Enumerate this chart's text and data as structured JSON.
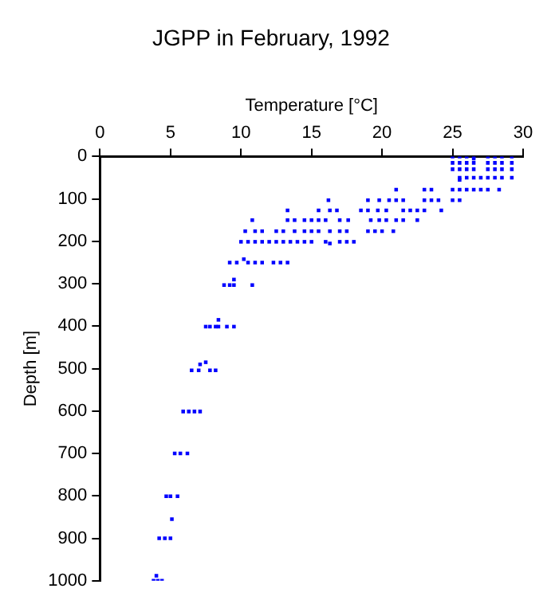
{
  "chart_data": {
    "type": "scatter",
    "title": "JGPP in February, 1992",
    "xlabel": "Temperature [°C]",
    "ylabel": "Depth [m]",
    "xlim": [
      0,
      30
    ],
    "xticks": [
      0,
      5,
      10,
      15,
      20,
      25,
      30
    ],
    "ylim": [
      1000,
      0
    ],
    "yticks": [
      0,
      100,
      200,
      300,
      400,
      500,
      600,
      700,
      800,
      900,
      1000
    ],
    "grid": false,
    "legend": false,
    "marker": "square",
    "series": [
      {
        "color": "#0000ff",
        "x": [
          25,
          25.5,
          26,
          26.5,
          27.5,
          28,
          28.5,
          29.2,
          25,
          25.5,
          26,
          26.5,
          27.5,
          28,
          28.5,
          29.2,
          25,
          25.5,
          26,
          26.5,
          27.5,
          28,
          28.5,
          29.2,
          25.5,
          26,
          26.5,
          27,
          27.5,
          28,
          28.5,
          29.2,
          25.5,
          26.5,
          21,
          23,
          23.5,
          25,
          25.5,
          26,
          26.5,
          27,
          27.5,
          28.3,
          16.2,
          19,
          19.8,
          20.5,
          21,
          21.5,
          23,
          23.5,
          24,
          25,
          25.5,
          13.3,
          15.5,
          16.3,
          16.8,
          18.5,
          19,
          19.7,
          20.3,
          21.5,
          22,
          22.5,
          23,
          24.2,
          10.8,
          13.3,
          13.8,
          14.5,
          15,
          15.5,
          16,
          17,
          17.6,
          19.2,
          19.8,
          20.3,
          21,
          21.5,
          22.5,
          10.3,
          11,
          11.5,
          12.5,
          13,
          13.8,
          14.5,
          15,
          15.5,
          16.3,
          17,
          17.5,
          19,
          19.5,
          20,
          20.8,
          10,
          10.5,
          11,
          11.5,
          12,
          12.5,
          13,
          13.5,
          14,
          14.5,
          15,
          16,
          16.3,
          17,
          17.5,
          18,
          9.2,
          9.7,
          10.2,
          10.5,
          11,
          11.5,
          12.3,
          12.8,
          13.3,
          8.8,
          9.2,
          9.5,
          9.5,
          10.8,
          7.5,
          7.8,
          8.2,
          8.4,
          8.4,
          9,
          9.5,
          6.5,
          7,
          7.1,
          7.5,
          7.8,
          8.2,
          5.9,
          6.3,
          6.7,
          7.1,
          5.3,
          5.7,
          6.2,
          4.7,
          5,
          5.5,
          5.1,
          4.2,
          4.6,
          5,
          3.8,
          4.1,
          4.4,
          4
        ],
        "values": [
          0,
          0,
          0,
          0,
          0,
          0,
          0,
          0,
          15,
          15,
          15,
          15,
          15,
          15,
          15,
          15,
          30,
          30,
          30,
          30,
          30,
          30,
          30,
          30,
          50,
          50,
          50,
          50,
          50,
          50,
          50,
          50,
          55,
          5,
          78,
          78,
          78,
          78,
          78,
          78,
          78,
          78,
          78,
          78,
          103,
          103,
          103,
          103,
          103,
          103,
          103,
          103,
          103,
          103,
          103,
          127,
          127,
          127,
          127,
          127,
          127,
          127,
          127,
          127,
          127,
          127,
          127,
          127,
          150,
          150,
          150,
          150,
          150,
          150,
          150,
          150,
          150,
          150,
          150,
          150,
          150,
          150,
          150,
          176,
          176,
          176,
          176,
          176,
          176,
          176,
          176,
          176,
          176,
          176,
          176,
          176,
          176,
          176,
          176,
          201,
          201,
          201,
          201,
          201,
          201,
          201,
          201,
          201,
          201,
          201,
          201,
          205,
          201,
          201,
          201,
          250,
          250,
          242,
          250,
          250,
          250,
          250,
          250,
          250,
          303,
          303,
          303,
          290,
          303,
          401,
          401,
          401,
          401,
          385,
          401,
          401,
          504,
          504,
          490,
          485,
          504,
          504,
          601,
          601,
          601,
          601,
          700,
          700,
          700,
          801,
          801,
          801,
          855,
          900,
          900,
          900,
          1000,
          1000,
          1000,
          988
        ]
      }
    ]
  }
}
